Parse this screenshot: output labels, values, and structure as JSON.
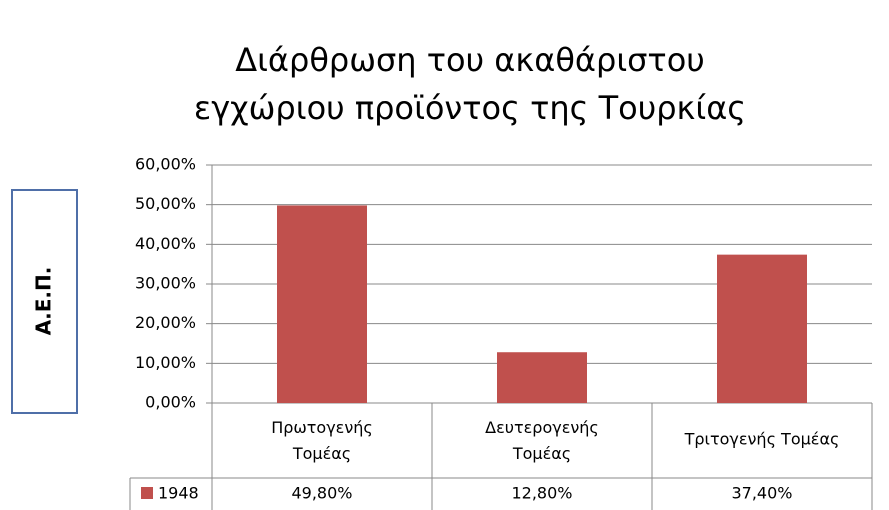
{
  "chart_data": {
    "type": "bar",
    "title": [
      "Διάρθρωση του ακαθάριστου",
      "εγχώριου προϊόντος της Τουρκίας"
    ],
    "y_label": "Α.Ε.Π.",
    "categories": [
      "Πρωτογενής Τομέας",
      "Δευτερογενής Τομέας",
      "Τριτογενής Τομέας"
    ],
    "series": [
      {
        "name": "1948",
        "color": "#c0504d",
        "values": [
          49.8,
          12.8,
          37.4
        ],
        "value_labels": [
          "49,80%",
          "12,80%",
          "37,40%"
        ]
      }
    ],
    "ylim": [
      0,
      60
    ],
    "yticks": [
      {
        "value": 0,
        "label": "0,00%"
      },
      {
        "value": 10,
        "label": "10,00%"
      },
      {
        "value": 20,
        "label": "20,00%"
      },
      {
        "value": 30,
        "label": "30,00%"
      },
      {
        "value": 40,
        "label": "40,00%"
      },
      {
        "value": 50,
        "label": "50,00%"
      },
      {
        "value": 60,
        "label": "60,00%"
      }
    ],
    "grid": true
  }
}
